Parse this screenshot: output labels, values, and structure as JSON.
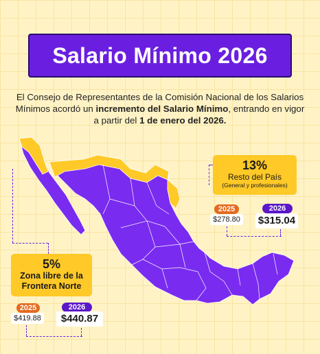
{
  "header": {
    "title": "Salario Mínimo 2026"
  },
  "intro": {
    "part1": "El Consejo de Representantes de la Comisión Nacional de los Salarios Mínimos acordó un ",
    "bold1": "incremento del Salario Mínimo",
    "part2": ", entrando en vigor a partir del ",
    "bold2": "1 de enero del 2026."
  },
  "regions": {
    "resto": {
      "percent": "13%",
      "title": "Resto del País",
      "subtitle": "(General y profesionales)",
      "year_old": "2025",
      "value_old": "$278.80",
      "year_new": "2026",
      "value_new": "$315.04",
      "increase_fraction": 0.13
    },
    "frontera": {
      "percent": "5%",
      "title_line1": "Zona libre de la",
      "title_line2": "Frontera Norte",
      "year_old": "2025",
      "value_old": "$419.88",
      "year_new": "2026",
      "value_new": "$440.87",
      "increase_fraction": 0.05
    }
  },
  "colors": {
    "background": "#fff3c6",
    "title_bg": "#6a1fe0",
    "map_general": "#7a2bf0",
    "map_border_zone": "#ffc928",
    "pill_2025": "#e46a1f",
    "pill_2026": "#5b17c9"
  }
}
